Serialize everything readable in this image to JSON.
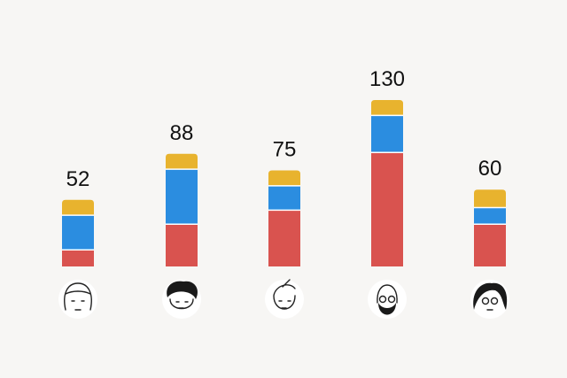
{
  "chart_data": {
    "type": "bar",
    "stacked": true,
    "totals": [
      52,
      88,
      75,
      130,
      60
    ],
    "series": [
      {
        "color": "#d9534f",
        "values": [
          13,
          33,
          44,
          89,
          33
        ]
      },
      {
        "color": "#2b8de0",
        "values": [
          27,
          43,
          19,
          29,
          13
        ]
      },
      {
        "color": "#e8b32e",
        "values": [
          12,
          12,
          12,
          12,
          14
        ]
      }
    ]
  }
}
